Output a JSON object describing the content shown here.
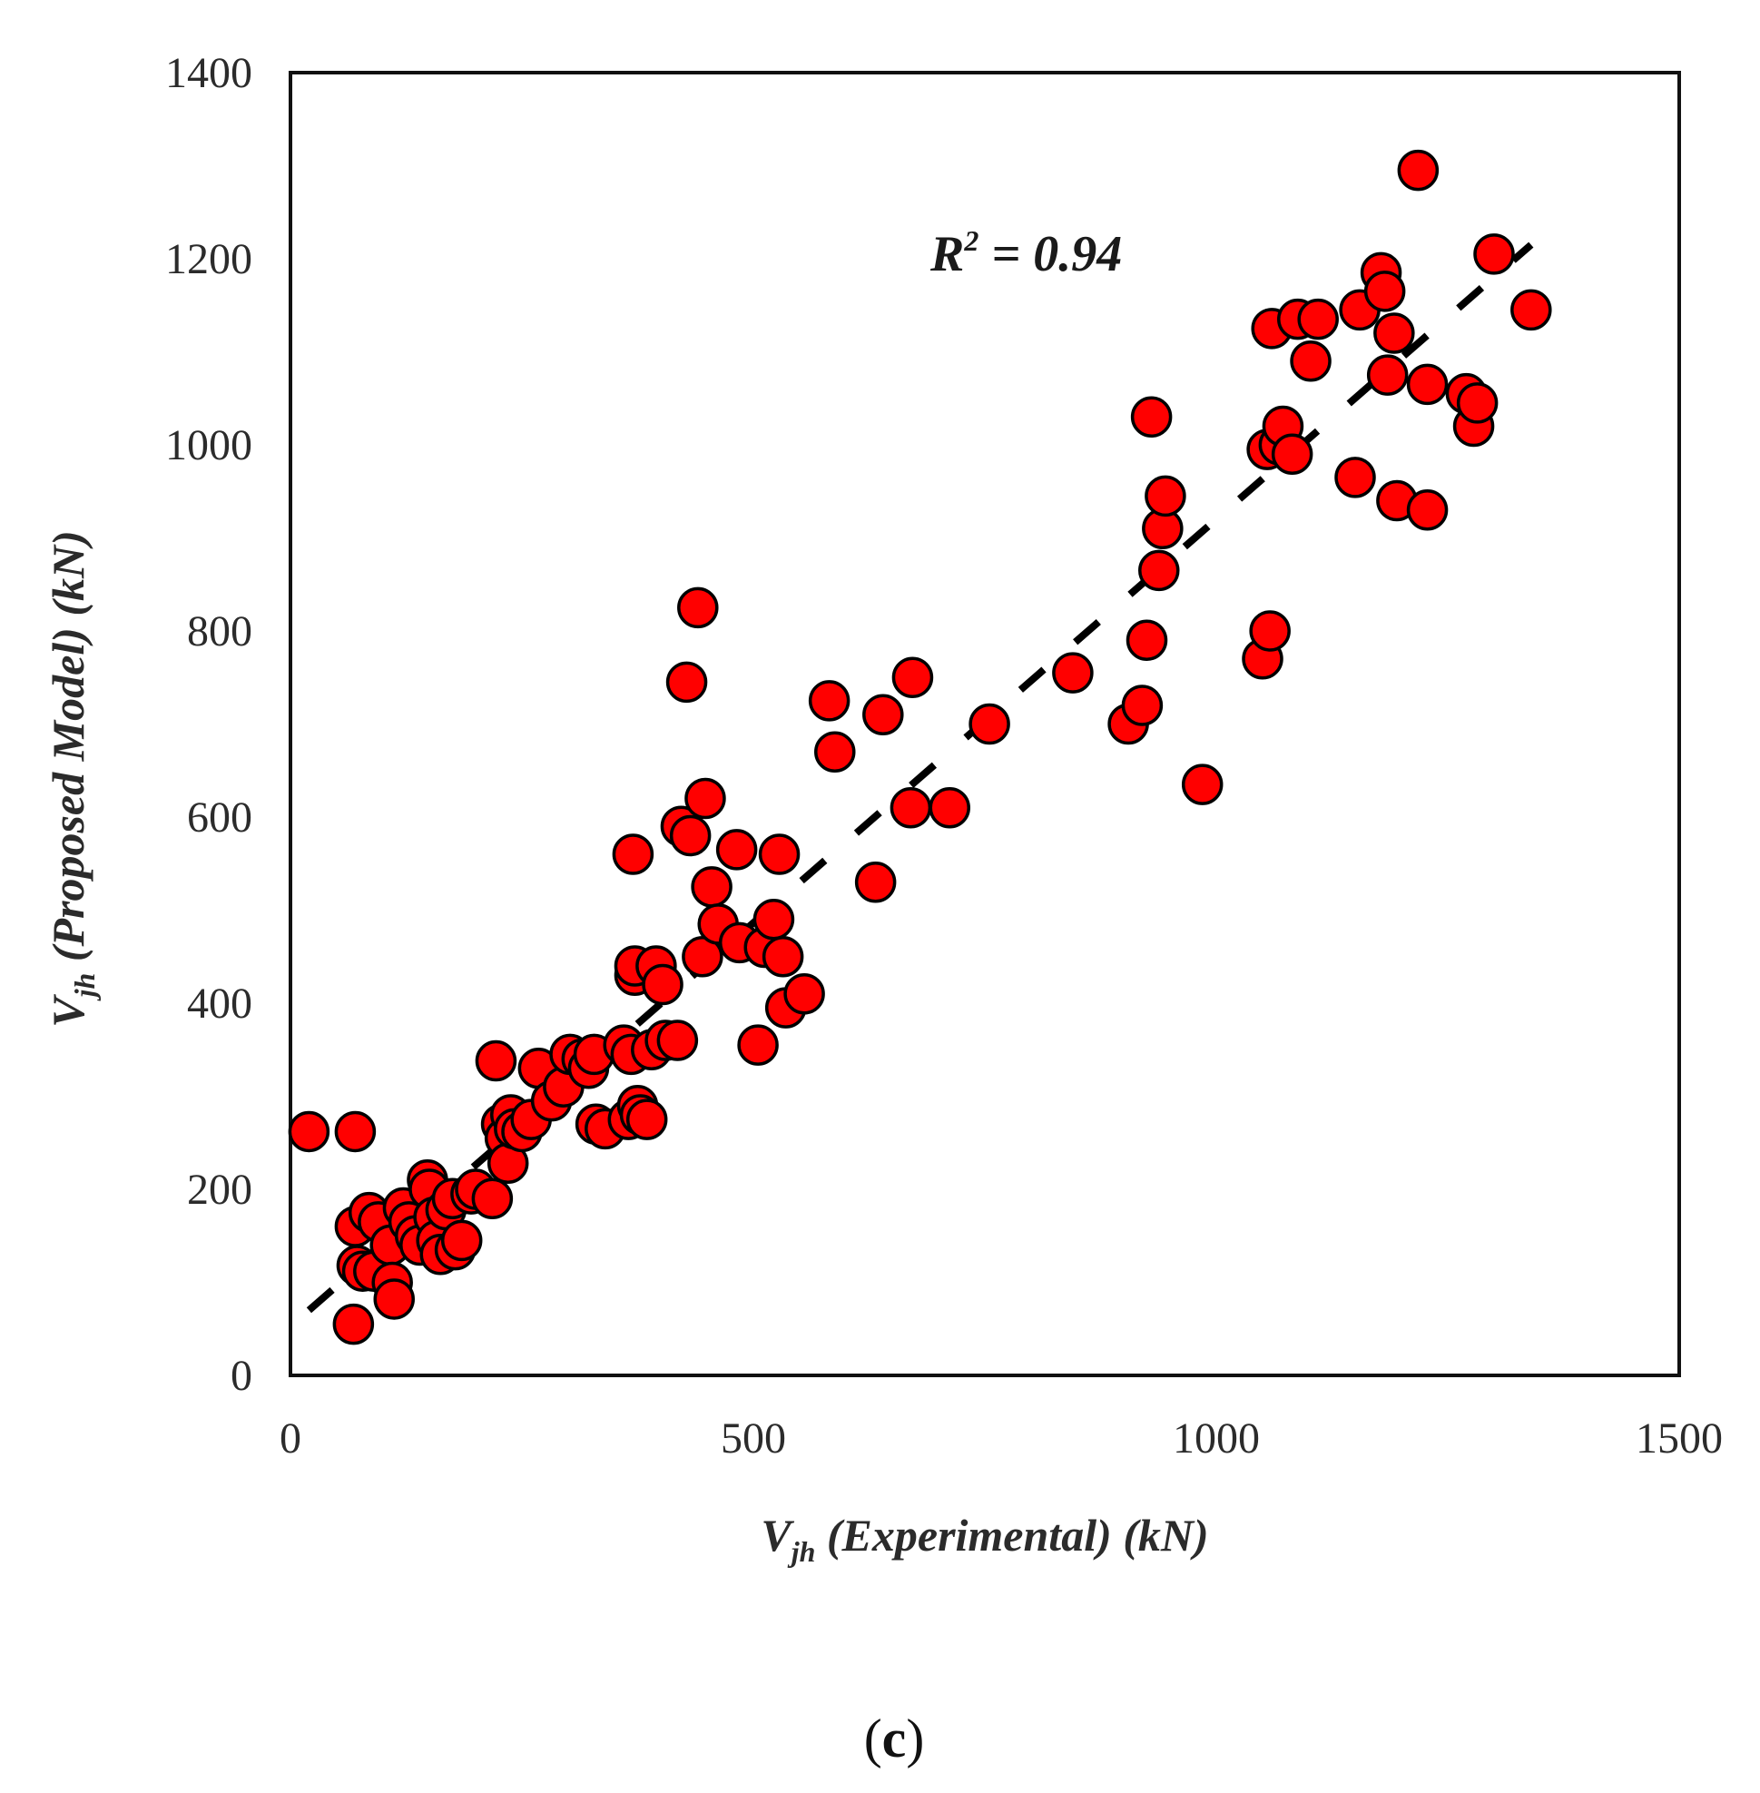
{
  "chart_data": {
    "type": "scatter",
    "xlabel": {
      "main": "V",
      "sub": "jh",
      "rest": " (Experimental) (kN)"
    },
    "ylabel": {
      "main": "V",
      "sub": "jh",
      "rest": " (Proposed Model) (kN)"
    },
    "xlim": [
      0,
      1500
    ],
    "ylim": [
      0,
      1400
    ],
    "x_ticks": [
      "0",
      "500",
      "1000",
      "1500"
    ],
    "y_ticks": [
      "0",
      "200",
      "400",
      "600",
      "800",
      "1000",
      "1200",
      "1400"
    ],
    "annotation": {
      "lead": "R",
      "sup": "2",
      "rest": " = 0.94"
    },
    "panel_label": {
      "open": "(",
      "letter": "c",
      "close": ")"
    },
    "marker_color": "#ff0000",
    "marker_edge_color": "#000000",
    "trendline": {
      "style": "dashed",
      "color": "#000000",
      "x": [
        20,
        1340
      ],
      "y": [
        70,
        1215
      ]
    },
    "points": [
      [
        20,
        262
      ],
      [
        70,
        262
      ],
      [
        68,
        55
      ],
      [
        70,
        160
      ],
      [
        72,
        118
      ],
      [
        78,
        112
      ],
      [
        85,
        175
      ],
      [
        90,
        112
      ],
      [
        95,
        165
      ],
      [
        108,
        140
      ],
      [
        110,
        100
      ],
      [
        112,
        82
      ],
      [
        122,
        180
      ],
      [
        128,
        165
      ],
      [
        135,
        150
      ],
      [
        140,
        140
      ],
      [
        148,
        210
      ],
      [
        150,
        200
      ],
      [
        155,
        170
      ],
      [
        158,
        145
      ],
      [
        162,
        130
      ],
      [
        168,
        178
      ],
      [
        175,
        190
      ],
      [
        178,
        135
      ],
      [
        185,
        145
      ],
      [
        195,
        195
      ],
      [
        200,
        200
      ],
      [
        218,
        190
      ],
      [
        222,
        338
      ],
      [
        228,
        270
      ],
      [
        232,
        255
      ],
      [
        235,
        228
      ],
      [
        238,
        280
      ],
      [
        242,
        265
      ],
      [
        250,
        262
      ],
      [
        260,
        275
      ],
      [
        268,
        330
      ],
      [
        282,
        295
      ],
      [
        295,
        310
      ],
      [
        302,
        345
      ],
      [
        315,
        340
      ],
      [
        322,
        330
      ],
      [
        328,
        345
      ],
      [
        330,
        270
      ],
      [
        340,
        265
      ],
      [
        360,
        355
      ],
      [
        365,
        275
      ],
      [
        368,
        345
      ],
      [
        370,
        560
      ],
      [
        372,
        430
      ],
      [
        372,
        440
      ],
      [
        375,
        290
      ],
      [
        378,
        280
      ],
      [
        385,
        275
      ],
      [
        390,
        350
      ],
      [
        395,
        440
      ],
      [
        402,
        420
      ],
      [
        405,
        360
      ],
      [
        418,
        360
      ],
      [
        422,
        590
      ],
      [
        428,
        745
      ],
      [
        432,
        580
      ],
      [
        440,
        825
      ],
      [
        445,
        450
      ],
      [
        448,
        620
      ],
      [
        455,
        525
      ],
      [
        462,
        485
      ],
      [
        482,
        565
      ],
      [
        485,
        465
      ],
      [
        505,
        355
      ],
      [
        512,
        460
      ],
      [
        522,
        490
      ],
      [
        528,
        560
      ],
      [
        532,
        450
      ],
      [
        535,
        395
      ],
      [
        555,
        410
      ],
      [
        582,
        725
      ],
      [
        588,
        670
      ],
      [
        632,
        530
      ],
      [
        640,
        710
      ],
      [
        670,
        610
      ],
      [
        672,
        750
      ],
      [
        712,
        610
      ],
      [
        755,
        700
      ],
      [
        845,
        755
      ],
      [
        905,
        700
      ],
      [
        920,
        720
      ],
      [
        925,
        790
      ],
      [
        930,
        1030
      ],
      [
        938,
        865
      ],
      [
        942,
        910
      ],
      [
        945,
        945
      ],
      [
        985,
        635
      ],
      [
        1050,
        770
      ],
      [
        1055,
        995
      ],
      [
        1058,
        800
      ],
      [
        1060,
        1125
      ],
      [
        1068,
        1000
      ],
      [
        1072,
        1020
      ],
      [
        1082,
        990
      ],
      [
        1088,
        1135
      ],
      [
        1102,
        1090
      ],
      [
        1110,
        1135
      ],
      [
        1150,
        965
      ],
      [
        1155,
        1145
      ],
      [
        1178,
        1185
      ],
      [
        1182,
        1165
      ],
      [
        1185,
        1075
      ],
      [
        1192,
        1120
      ],
      [
        1195,
        940
      ],
      [
        1218,
        1295
      ],
      [
        1228,
        930
      ],
      [
        1228,
        1065
      ],
      [
        1270,
        1055
      ],
      [
        1278,
        1020
      ],
      [
        1282,
        1045
      ],
      [
        1300,
        1205
      ],
      [
        1340,
        1145
      ]
    ]
  }
}
